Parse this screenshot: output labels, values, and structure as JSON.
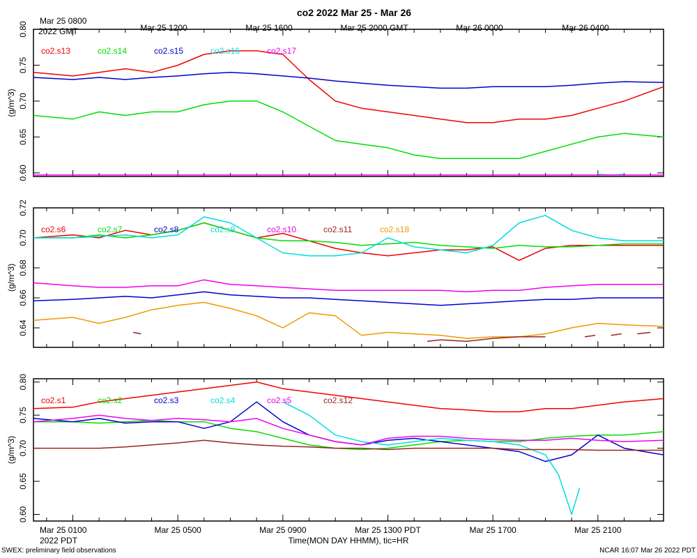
{
  "chart_data": {
    "type": "line",
    "title": "co2 2022 Mar 25 - Mar 26",
    "top_axis": {
      "first_label_line1": "Mar 25 0800",
      "first_label_line2": "2022 GMT",
      "labels": [
        "Mar 25 1200",
        "Mar 25 1600",
        "Mar 25 2000 GMT",
        "Mar 26 0000",
        "Mar 26 0400"
      ]
    },
    "bottom_axis": {
      "labels": [
        "Mar 25 0100",
        "Mar 25 0500",
        "Mar 25 0900",
        "Mar 25 1300 PDT",
        "Mar 25 1700",
        "Mar 25 2100"
      ],
      "sublabel": "2022 PDT",
      "xlabel": "Time(MON DAY HHMM), tic=HR"
    },
    "x_range_hours": [
      -0.5,
      23.5
    ],
    "footer_left": "SWEX: preliminary field observations",
    "footer_right": "NCAR 16:07 Mar 26 2022 PDT",
    "panels": [
      {
        "ylabel": "(g/m^3)",
        "ylim": [
          0.595,
          0.8
        ],
        "yticks": [
          "0.60",
          "0.65",
          "0.70",
          "0.75",
          "0.80"
        ],
        "series": [
          {
            "name": "co2.s13",
            "color": "#ee0000",
            "x": [
              -0.5,
              1,
              2,
              3,
              4,
              5,
              6,
              7,
              8,
              9,
              10,
              11,
              12,
              13,
              14,
              15,
              16,
              17,
              18,
              19,
              20,
              21,
              22,
              23.5
            ],
            "y": [
              0.74,
              0.735,
              0.74,
              0.745,
              0.74,
              0.75,
              0.765,
              0.77,
              0.77,
              0.765,
              0.73,
              0.7,
              0.69,
              0.685,
              0.68,
              0.675,
              0.67,
              0.67,
              0.675,
              0.675,
              0.68,
              0.69,
              0.7,
              0.72
            ]
          },
          {
            "name": "co2.s14",
            "color": "#00dd00",
            "x": [
              -0.5,
              1,
              2,
              3,
              4,
              5,
              6,
              7,
              8,
              9,
              10,
              11,
              12,
              13,
              14,
              15,
              16,
              17,
              18,
              19,
              20,
              21,
              22,
              23.5
            ],
            "y": [
              0.68,
              0.675,
              0.685,
              0.68,
              0.685,
              0.685,
              0.695,
              0.7,
              0.7,
              0.685,
              0.665,
              0.645,
              0.64,
              0.635,
              0.625,
              0.62,
              0.62,
              0.62,
              0.62,
              0.63,
              0.64,
              0.65,
              0.655,
              0.65
            ]
          },
          {
            "name": "co2.s15",
            "color": "#0000cc",
            "x": [
              -0.5,
              1,
              2,
              3,
              4,
              5,
              6,
              7,
              8,
              9,
              10,
              11,
              12,
              13,
              14,
              15,
              16,
              17,
              18,
              19,
              20,
              21,
              22,
              23.5
            ],
            "y": [
              0.733,
              0.73,
              0.733,
              0.73,
              0.733,
              0.735,
              0.738,
              0.74,
              0.738,
              0.735,
              0.732,
              0.728,
              0.725,
              0.722,
              0.72,
              0.718,
              0.718,
              0.72,
              0.72,
              0.72,
              0.722,
              0.725,
              0.727,
              0.726
            ]
          },
          {
            "name": "co2.s16",
            "color": "#00dddd",
            "x": [
              21,
              21.5,
              22
            ],
            "y": [
              0.598,
              0.597,
              0.598
            ]
          },
          {
            "name": "co2.s17",
            "color": "#ee00ee",
            "x": [
              -0.5,
              23.5
            ],
            "y": [
              0.597,
              0.597
            ]
          }
        ]
      },
      {
        "ylabel": "(g/m^3)",
        "ylim": [
          0.627,
          0.72
        ],
        "yticks": [
          "0.64",
          "0.66",
          "0.68",
          "0.70",
          "0.72"
        ],
        "series": [
          {
            "name": "co2.s6",
            "color": "#ee0000",
            "x": [
              -0.5,
              1,
              2,
              3,
              4,
              5,
              6,
              7,
              8,
              9,
              10,
              11,
              12,
              13,
              14,
              15,
              16,
              17,
              18,
              19,
              20,
              21,
              22,
              23.5
            ],
            "y": [
              0.7,
              0.702,
              0.7,
              0.705,
              0.702,
              0.705,
              0.71,
              0.705,
              0.7,
              0.703,
              0.698,
              0.693,
              0.69,
              0.688,
              0.69,
              0.692,
              0.692,
              0.694,
              0.685,
              0.693,
              0.695,
              0.695,
              0.695,
              0.695
            ]
          },
          {
            "name": "co2.s7",
            "color": "#00dd00",
            "x": [
              -0.5,
              1,
              2,
              3,
              4,
              5,
              6,
              7,
              8,
              9,
              10,
              11,
              12,
              13,
              14,
              15,
              16,
              17,
              18,
              19,
              20,
              21,
              22,
              23.5
            ],
            "y": [
              0.7,
              0.7,
              0.702,
              0.7,
              0.702,
              0.705,
              0.71,
              0.705,
              0.7,
              0.698,
              0.698,
              0.697,
              0.695,
              0.696,
              0.697,
              0.695,
              0.694,
              0.693,
              0.695,
              0.694,
              0.694,
              0.695,
              0.696,
              0.696
            ]
          },
          {
            "name": "co2.s8",
            "color": "#0000cc",
            "x": [
              -0.5,
              1,
              2,
              3,
              4,
              5,
              6,
              7,
              8,
              9,
              10,
              11,
              12,
              13,
              14,
              15,
              16,
              17,
              18,
              19,
              20,
              21,
              22,
              23.5
            ],
            "y": [
              0.658,
              0.659,
              0.66,
              0.661,
              0.66,
              0.662,
              0.664,
              0.662,
              0.661,
              0.66,
              0.66,
              0.659,
              0.658,
              0.657,
              0.656,
              0.655,
              0.656,
              0.657,
              0.658,
              0.659,
              0.659,
              0.66,
              0.66,
              0.66
            ]
          },
          {
            "name": "co2.s9",
            "color": "#00dddd",
            "x": [
              -0.5,
              1,
              2,
              3,
              4,
              5,
              6,
              7,
              8,
              9,
              10,
              11,
              12,
              13,
              14,
              15,
              16,
              17,
              18,
              19,
              20,
              21,
              22,
              23.5
            ],
            "y": [
              0.7,
              0.7,
              0.701,
              0.702,
              0.7,
              0.702,
              0.714,
              0.71,
              0.7,
              0.69,
              0.688,
              0.688,
              0.69,
              0.7,
              0.694,
              0.692,
              0.69,
              0.695,
              0.71,
              0.715,
              0.705,
              0.7,
              0.698,
              0.698
            ]
          },
          {
            "name": "co2.s10",
            "color": "#ee00ee",
            "x": [
              -0.5,
              1,
              2,
              3,
              4,
              5,
              6,
              7,
              8,
              9,
              10,
              11,
              12,
              13,
              14,
              15,
              16,
              17,
              18,
              19,
              20,
              21,
              22,
              23.5
            ],
            "y": [
              0.67,
              0.668,
              0.667,
              0.667,
              0.668,
              0.668,
              0.672,
              0.669,
              0.668,
              0.667,
              0.666,
              0.665,
              0.665,
              0.665,
              0.665,
              0.665,
              0.664,
              0.665,
              0.665,
              0.667,
              0.668,
              0.669,
              0.669,
              0.669
            ]
          },
          {
            "name": "co2.s11",
            "color": "#992222",
            "x": [
              3.3,
              3.6
            ],
            "y": [
              0.637,
              0.636
            ]
          },
          {
            "name": "co2.s18",
            "color": "#ee9900",
            "x": [
              -0.5,
              1,
              2,
              3,
              4,
              5,
              6,
              7,
              8,
              9,
              10,
              11,
              12,
              13,
              14,
              15,
              16,
              17,
              18,
              19,
              20,
              21,
              22,
              23.5
            ],
            "y": [
              0.645,
              0.647,
              0.643,
              0.647,
              0.652,
              0.655,
              0.657,
              0.653,
              0.648,
              0.64,
              0.65,
              0.648,
              0.635,
              0.637,
              0.636,
              0.635,
              0.633,
              0.634,
              0.634,
              0.636,
              0.64,
              0.643,
              0.642,
              0.641
            ]
          },
          {
            "name": "co2.s11",
            "color": "#992222",
            "x": [
              14.5,
              15,
              16,
              17,
              18,
              19
            ],
            "y": [
              0.631,
              0.632,
              0.631,
              0.633,
              0.634,
              0.634
            ]
          },
          {
            "name": "co2.s11",
            "color": "#992222",
            "x": [
              20.5,
              20.9
            ],
            "y": [
              0.634,
              0.635
            ]
          },
          {
            "name": "co2.s11",
            "color": "#992222",
            "x": [
              21.5,
              21.9
            ],
            "y": [
              0.635,
              0.636
            ]
          },
          {
            "name": "co2.s11",
            "color": "#992222",
            "x": [
              22.5,
              23
            ],
            "y": [
              0.636,
              0.637
            ]
          }
        ]
      },
      {
        "ylabel": "(g/m^3)",
        "ylim": [
          0.59,
          0.805
        ],
        "yticks": [
          "0.60",
          "0.65",
          "0.70",
          "0.75",
          "0.80"
        ],
        "series": [
          {
            "name": "co2.s1",
            "color": "#ee0000",
            "x": [
              -0.5,
              1,
              2,
              3,
              4,
              5,
              6,
              7,
              8,
              9,
              10,
              11,
              12,
              13,
              14,
              15,
              16,
              17,
              18,
              19,
              20,
              21,
              22,
              23.5
            ],
            "y": [
              0.76,
              0.762,
              0.77,
              0.775,
              0.78,
              0.785,
              0.79,
              0.795,
              0.8,
              0.79,
              0.785,
              0.78,
              0.775,
              0.77,
              0.765,
              0.76,
              0.758,
              0.755,
              0.755,
              0.76,
              0.76,
              0.765,
              0.77,
              0.775
            ]
          },
          {
            "name": "co2.s2",
            "color": "#00dd00",
            "x": [
              -0.5,
              1,
              2,
              3,
              4,
              5,
              6,
              7,
              8,
              9,
              10,
              11,
              12,
              13,
              14,
              15,
              16,
              17,
              18,
              19,
              20,
              21,
              22,
              23.5
            ],
            "y": [
              0.74,
              0.74,
              0.738,
              0.74,
              0.742,
              0.74,
              0.74,
              0.73,
              0.725,
              0.715,
              0.705,
              0.7,
              0.698,
              0.7,
              0.705,
              0.71,
              0.712,
              0.71,
              0.71,
              0.715,
              0.718,
              0.72,
              0.72,
              0.725
            ]
          },
          {
            "name": "co2.s3",
            "color": "#0000cc",
            "x": [
              -0.5,
              1,
              2,
              3,
              4,
              5,
              6,
              7,
              8,
              9,
              10,
              11,
              12,
              13,
              14,
              15,
              16,
              17,
              18,
              19,
              20,
              21,
              22,
              23.5
            ],
            "y": [
              0.745,
              0.74,
              0.745,
              0.738,
              0.74,
              0.74,
              0.73,
              0.74,
              0.77,
              0.74,
              0.72,
              0.71,
              0.705,
              0.712,
              0.715,
              0.71,
              0.705,
              0.7,
              0.695,
              0.68,
              0.69,
              0.72,
              0.7,
              0.69
            ]
          },
          {
            "name": "co2.s4",
            "color": "#00dddd",
            "x": [
              9,
              9.5,
              10,
              11,
              12,
              13,
              14,
              15,
              16,
              17,
              18,
              19,
              19.5,
              20,
              20.3
            ],
            "y": [
              0.77,
              0.76,
              0.75,
              0.72,
              0.71,
              0.705,
              0.71,
              0.715,
              0.712,
              0.71,
              0.705,
              0.69,
              0.66,
              0.6,
              0.64
            ]
          },
          {
            "name": "co2.s5",
            "color": "#ee00ee",
            "x": [
              -0.5,
              1,
              2,
              3,
              4,
              5,
              6,
              7,
              8,
              9,
              10,
              11,
              12,
              13,
              14,
              15,
              16,
              17,
              18,
              19,
              20,
              21,
              22,
              23.5
            ],
            "y": [
              0.74,
              0.745,
              0.75,
              0.745,
              0.742,
              0.745,
              0.743,
              0.74,
              0.745,
              0.73,
              0.72,
              0.71,
              0.705,
              0.715,
              0.718,
              0.718,
              0.715,
              0.713,
              0.712,
              0.712,
              0.715,
              0.712,
              0.71,
              0.712
            ]
          },
          {
            "name": "co2.s12",
            "color": "#992222",
            "x": [
              -0.5,
              1,
              2,
              3,
              4,
              5,
              6,
              7,
              8,
              9,
              10,
              11,
              12,
              13,
              14,
              15,
              16,
              17,
              18,
              19,
              20,
              21,
              22,
              23.5
            ],
            "y": [
              0.7,
              0.7,
              0.7,
              0.702,
              0.705,
              0.708,
              0.712,
              0.708,
              0.705,
              0.703,
              0.702,
              0.7,
              0.7,
              0.698,
              0.7,
              0.7,
              0.7,
              0.7,
              0.698,
              0.698,
              0.698,
              0.697,
              0.697,
              0.697
            ]
          }
        ]
      }
    ]
  }
}
